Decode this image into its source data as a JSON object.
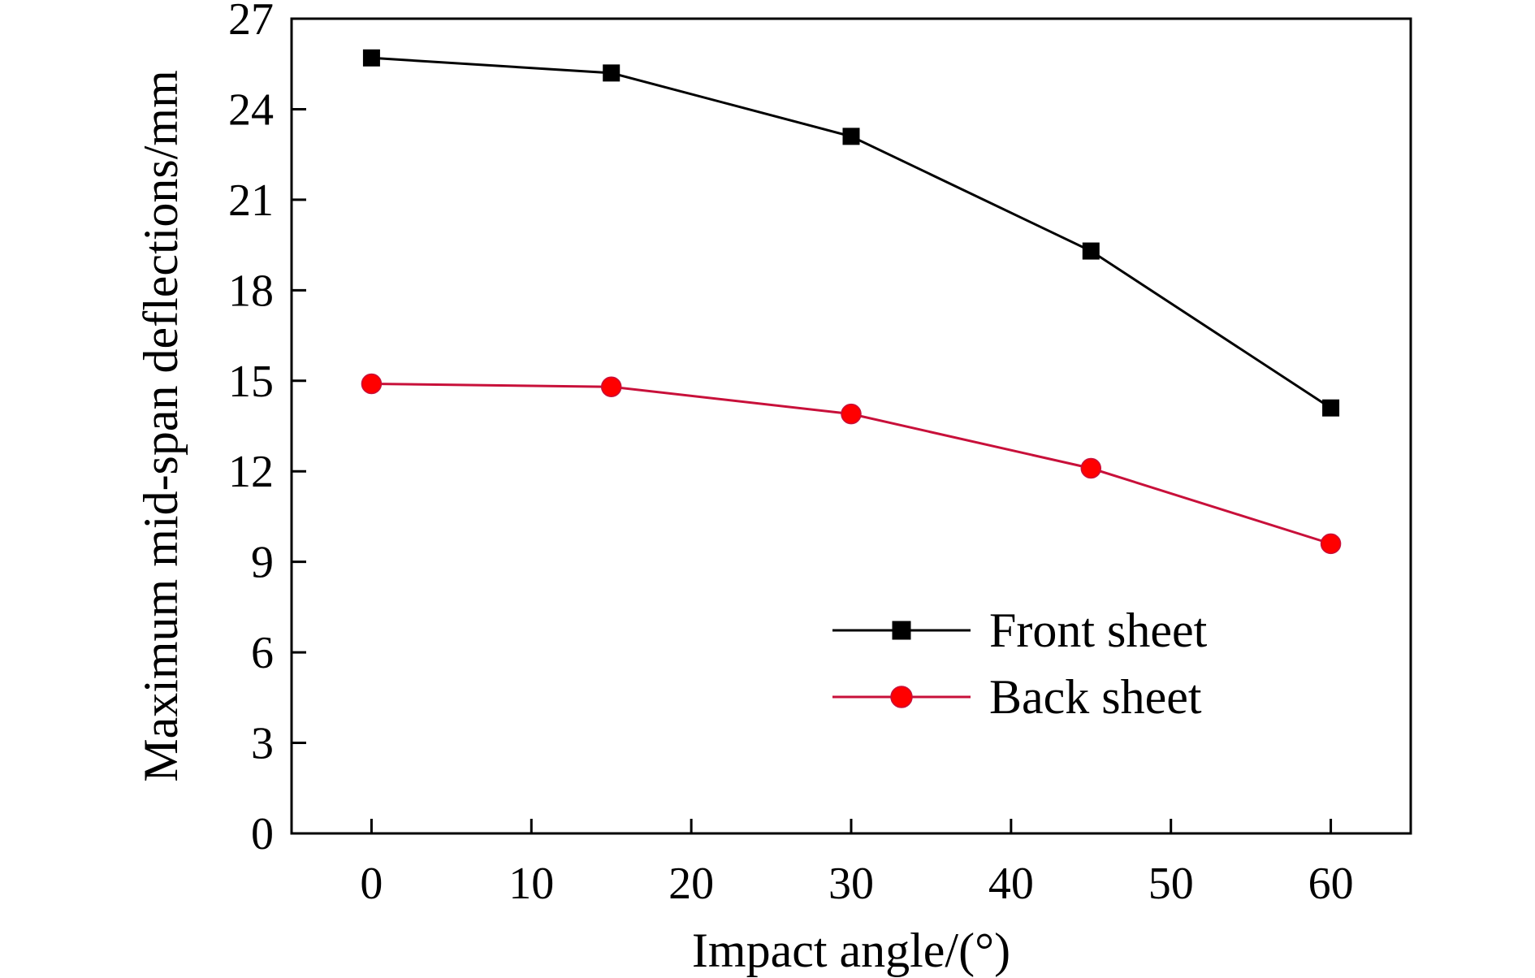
{
  "chart_data": {
    "type": "line",
    "xlabel": "Impact angle/(°)",
    "ylabel": "Maximum mid-span deflections/mm",
    "xlim": [
      -5,
      65
    ],
    "ylim": [
      0,
      27
    ],
    "xticks": [
      0,
      10,
      20,
      30,
      40,
      50,
      60
    ],
    "yticks": [
      0,
      3,
      6,
      9,
      12,
      15,
      18,
      21,
      24,
      27
    ],
    "grid": false,
    "legend_position": "lower-right",
    "series": [
      {
        "name": "Front sheet",
        "marker": "square",
        "color": "#000000",
        "x": [
          0,
          15,
          30,
          45,
          60
        ],
        "y": [
          25.7,
          25.2,
          23.1,
          19.3,
          14.1
        ]
      },
      {
        "name": "Back sheet",
        "marker": "circle",
        "color": "#ff0000",
        "line_color": "#c8103a",
        "x": [
          0,
          15,
          30,
          45,
          60
        ],
        "y": [
          14.9,
          14.8,
          13.9,
          12.1,
          9.6
        ]
      }
    ]
  }
}
